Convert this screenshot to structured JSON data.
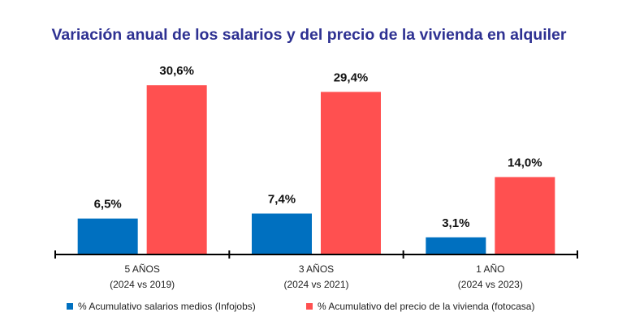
{
  "chart_data": {
    "type": "bar",
    "title": "Variación anual de los salarios y del precio de la vivienda en alquiler",
    "categories": [
      {
        "line1": "5 AÑOS",
        "line2": "(2024 vs 2019)"
      },
      {
        "line1": "3 AÑOS",
        "line2": "(2024 vs 2021)"
      },
      {
        "line1": "1 AÑO",
        "line2": "(2024 vs 2023)"
      }
    ],
    "series": [
      {
        "name": "% Acumulativo salarios medios (Infojobs)",
        "color": "#0070c0",
        "values": [
          6.5,
          7.4,
          3.1
        ],
        "labels": [
          "6,5%",
          "7,4%",
          "3,1%"
        ]
      },
      {
        "name": "% Acumulativo del precio de la vivienda (fotocasa)",
        "color": "#ff5050",
        "values": [
          30.6,
          29.4,
          14.0
        ],
        "labels": [
          "30,6%",
          "29,4%",
          "14,0%"
        ]
      }
    ],
    "ylim": [
      0,
      34
    ],
    "grid": false,
    "legend_position": "bottom"
  }
}
